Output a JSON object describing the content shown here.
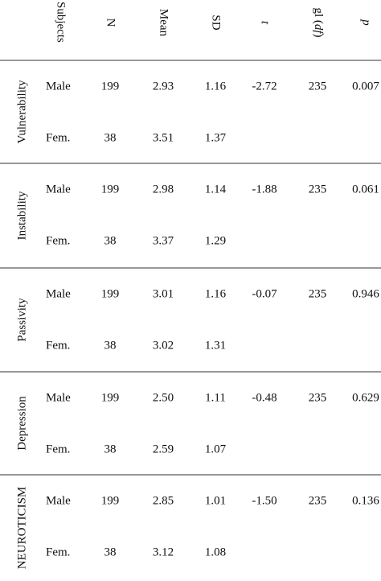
{
  "header": {
    "subjects": "Subjects",
    "n": "N",
    "mean": "Mean",
    "sd": "SD",
    "t": "t",
    "gl": [
      "gl (",
      "df",
      ")"
    ],
    "p": "p"
  },
  "groups": [
    {
      "label": "Vulnerability",
      "rows": [
        [
          "Male",
          "199",
          "2.93",
          "1.16",
          "-2.72",
          "235",
          "0.007"
        ],
        [
          "Fem.",
          "38",
          "3.51",
          "1.37"
        ]
      ]
    },
    {
      "label": "Instability",
      "rows": [
        [
          "Male",
          "199",
          "2.98",
          "1.14",
          "-1.88",
          "235",
          "0.061"
        ],
        [
          "Fem.",
          "38",
          "3.37",
          "1.29"
        ]
      ]
    },
    {
      "label": "Passivity",
      "rows": [
        [
          "Male",
          "199",
          "3.01",
          "1.16",
          "-0.07",
          "235",
          "0.946"
        ],
        [
          "Fem.",
          "38",
          "3.02",
          "1.31"
        ]
      ]
    },
    {
      "label": "Depression",
      "rows": [
        [
          "Male",
          "199",
          "2.50",
          "1.11",
          "-0.48",
          "235",
          "0.629"
        ],
        [
          "Fem.",
          "38",
          "2.59",
          "1.07"
        ]
      ]
    },
    {
      "label": "NEUROTICISM",
      "rows": [
        [
          "Male",
          "199",
          "2.85",
          "1.01",
          "-1.50",
          "235",
          "0.136"
        ],
        [
          "Fem.",
          "38",
          "3.12",
          "1.08"
        ]
      ]
    }
  ]
}
